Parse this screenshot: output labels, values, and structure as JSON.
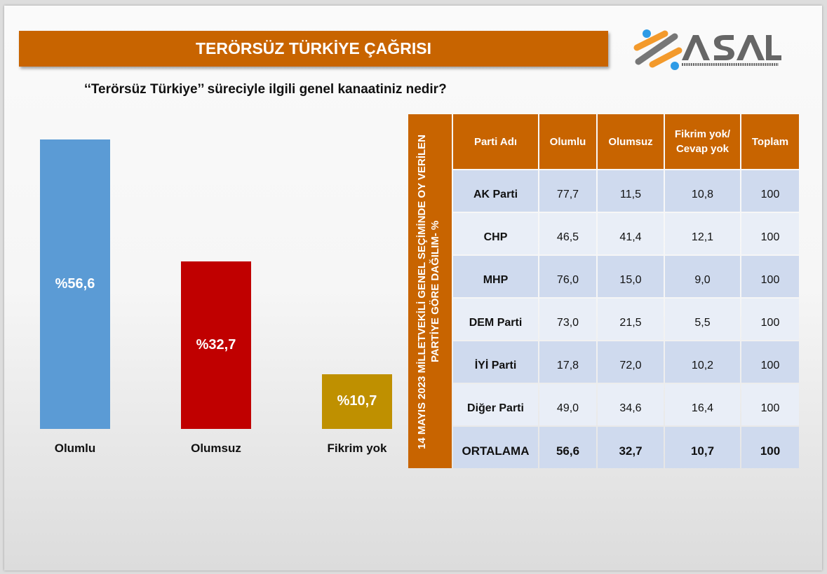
{
  "title": "TERÖRSÜZ TÜRKİYE ÇAĞRISI",
  "question": "‘‘Terörsüz Türkiye’’ süreciyle ilgili genel kanaatiniz nedir?",
  "logo": {
    "name": "ASAL",
    "tagline": "ARAŞTIRMA VE DANIŞMANLIK"
  },
  "chart_data": {
    "type": "bar",
    "categories": [
      "Olumlu",
      "Olumsuz",
      "Fikrim yok"
    ],
    "values": [
      56.6,
      32.7,
      10.7
    ],
    "labels": [
      "%56,6",
      "%32,7",
      "%10,7"
    ],
    "colors": [
      "#5B9BD5",
      "#C00000",
      "#BF9000"
    ]
  },
  "table": {
    "side_label": "14 MAYIS 2023 MİLLETVEKİLİ GENEL SEÇİMİNDE OY VERİLEN PARTİYE GÖRE DAĞILIM- %",
    "headers": [
      "Parti Adı",
      "Olumlu",
      "Olumsuz",
      "Fikrim yok/ Cevap yok",
      "Toplam"
    ],
    "rows": [
      [
        "AK Parti",
        "77,7",
        "11,5",
        "10,8",
        "100"
      ],
      [
        "CHP",
        "46,5",
        "41,4",
        "12,1",
        "100"
      ],
      [
        "MHP",
        "76,0",
        "15,0",
        "9,0",
        "100"
      ],
      [
        "DEM Parti",
        "73,0",
        "21,5",
        "5,5",
        "100"
      ],
      [
        "İYİ Parti",
        "17,8",
        "72,0",
        "10,2",
        "100"
      ],
      [
        "Diğer Parti",
        "49,0",
        "34,6",
        "16,4",
        "100"
      ],
      [
        "ORTALAMA",
        "56,6",
        "32,7",
        "10,7",
        "100"
      ]
    ]
  }
}
